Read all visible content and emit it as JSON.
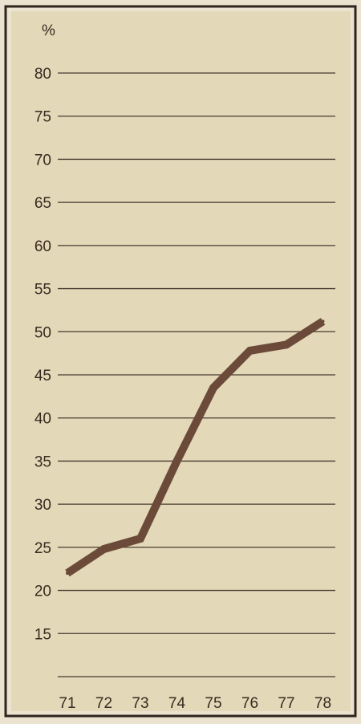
{
  "chart_data": {
    "type": "line",
    "title": "",
    "xlabel": "",
    "ylabel": "%",
    "categories": [
      "71",
      "72",
      "73",
      "74",
      "75",
      "76",
      "77",
      "78"
    ],
    "series": [
      {
        "values": [
          22,
          24.8,
          26,
          35,
          43.5,
          47.8,
          48.5,
          51.2
        ]
      }
    ],
    "ylim": [
      10,
      80
    ],
    "y_ticks": [
      15,
      20,
      25,
      30,
      35,
      40,
      45,
      50,
      55,
      60,
      65,
      70,
      75,
      80
    ],
    "grid": true,
    "colors": {
      "page_background": "#ebe2cf",
      "frame": "#2f241c",
      "plot_background": "#e3d8b8",
      "grid": "#4a3a30",
      "line": "#6b4a3a",
      "text": "#3a2a20"
    }
  }
}
